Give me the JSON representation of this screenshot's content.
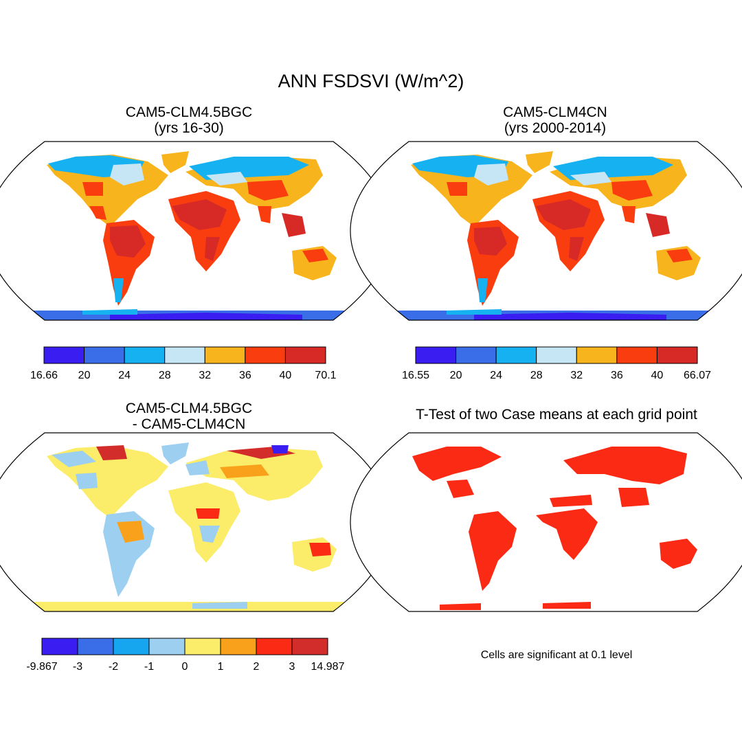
{
  "figure": {
    "title": "ANN FSDSVI (W/m^2)",
    "panels": [
      {
        "title_line1": "CAM5-CLM4.5BGC",
        "title_line2": "(yrs 16-30)",
        "colorbar": {
          "colors": [
            "#3a1df0",
            "#3a6ee8",
            "#16b1f0",
            "#c6e6f6",
            "#f8b41c",
            "#fa3d0f",
            "#d72a27"
          ],
          "labels": [
            "16.66",
            "20",
            "24",
            "28",
            "32",
            "36",
            "40",
            "70.1"
          ]
        }
      },
      {
        "title_line1": "CAM5-CLM4CN",
        "title_line2": "(yrs 2000-2014)",
        "colorbar": {
          "colors": [
            "#3a1df0",
            "#3a6ee8",
            "#16b1f0",
            "#c6e6f6",
            "#f8b41c",
            "#fa3d0f",
            "#d72a27"
          ],
          "labels": [
            "16.55",
            "20",
            "24",
            "28",
            "32",
            "36",
            "40",
            "66.07"
          ]
        }
      },
      {
        "title_line1": "CAM5-CLM4.5BGC",
        "title_line2": "- CAM5-CLM4CN",
        "colorbar": {
          "colors": [
            "#3a1df0",
            "#3a6ee8",
            "#16a6f0",
            "#9ccff0",
            "#fbec6a",
            "#f9a11b",
            "#fa2a14",
            "#d32d2b"
          ],
          "labels": [
            "-9.867",
            "-3",
            "-2",
            "-1",
            "0",
            "1",
            "2",
            "3",
            "14.987"
          ]
        }
      },
      {
        "title": "T-Test of two Case means at each grid point",
        "note": "Cells are significant at 0.1 level"
      }
    ]
  }
}
